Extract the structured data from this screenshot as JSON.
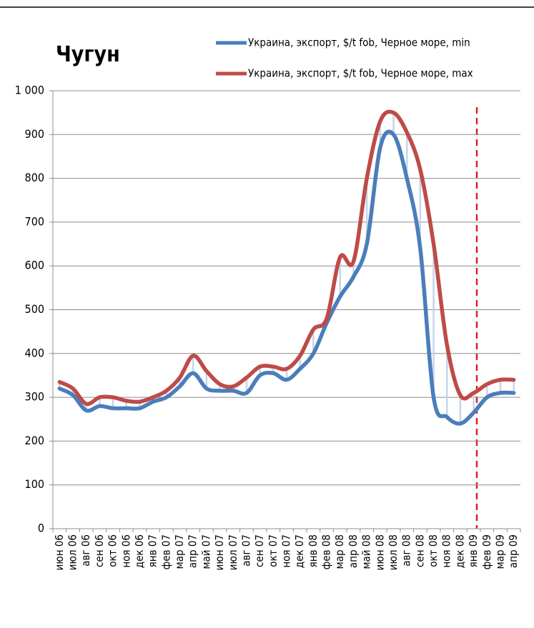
{
  "chart_data": {
    "type": "line",
    "title": "Чугун",
    "categories": [
      "июн 06",
      "июл 06",
      "авг 06",
      "сен 06",
      "окт 06",
      "ноя 06",
      "дек 06",
      "янв 07",
      "фев 07",
      "мар 07",
      "апр 07",
      "май 07",
      "июн 07",
      "июл 07",
      "авг 07",
      "сен 07",
      "окт 07",
      "ноя 07",
      "дек 07",
      "янв 08",
      "фев 08",
      "мар 08",
      "апр 08",
      "май 08",
      "июн 08",
      "июл 08",
      "авг 08",
      "сен 08",
      "окт 08",
      "ноя 08",
      "дек 08",
      "янв 09",
      "фев 09",
      "мар 09",
      "апр 09"
    ],
    "series": [
      {
        "name": "Украина, экспорт, $/t fob, Черное море, min",
        "color": "#4a7ebb",
        "values": [
          320,
          305,
          270,
          280,
          275,
          275,
          275,
          290,
          300,
          325,
          355,
          320,
          315,
          315,
          310,
          350,
          355,
          340,
          365,
          400,
          470,
          530,
          575,
          650,
          870,
          900,
          800,
          640,
          300,
          255,
          240,
          265,
          300,
          310,
          310
        ]
      },
      {
        "name": "Украина, экспорт, $/t fob, Черное море, max",
        "color": "#be4b48",
        "values": [
          335,
          320,
          285,
          300,
          300,
          292,
          290,
          300,
          315,
          345,
          395,
          360,
          330,
          325,
          345,
          370,
          370,
          365,
          395,
          455,
          480,
          620,
          610,
          800,
          930,
          950,
          905,
          820,
          650,
          420,
          305,
          310,
          330,
          340,
          340
        ]
      }
    ],
    "ylim": [
      0,
      1000
    ],
    "yticks": [
      0,
      100,
      200,
      300,
      400,
      500,
      600,
      700,
      800,
      900,
      {
        "value": 1000,
        "label": "1 000"
      }
    ],
    "grid": true
  }
}
